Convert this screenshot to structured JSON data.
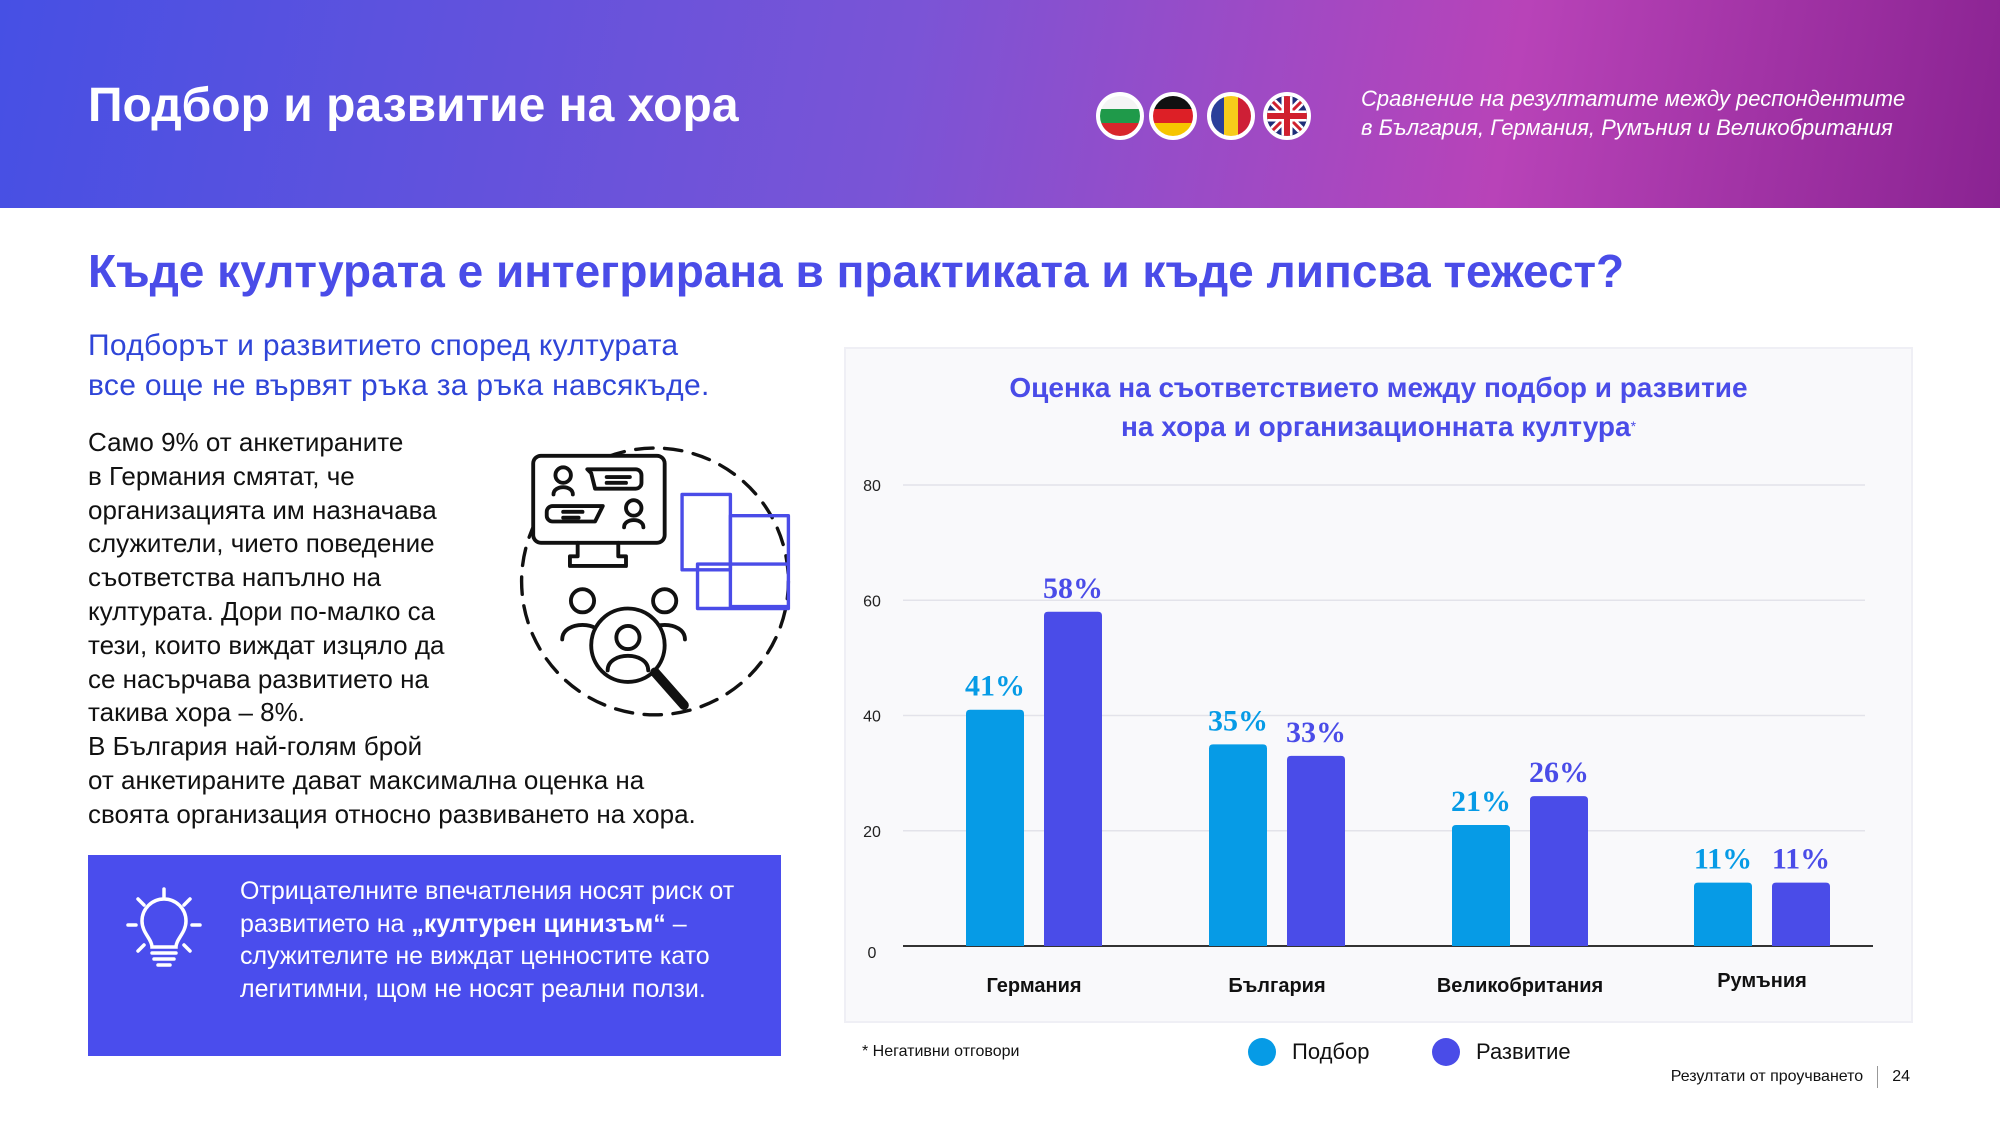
{
  "header": {
    "title": "Подбор и развитие на хора",
    "flags": [
      "bulgaria-flag",
      "germany-flag",
      "romania-flag",
      "uk-flag"
    ],
    "subtitle_lines": [
      "Сравнение на резултатите между респондентите",
      "в България, Германия, Румъния и Великобритания"
    ]
  },
  "main": {
    "heading": "Къде културата е интегрирана в практиката и къде липсва тежест?",
    "lead_lines": [
      "Подборът и развитието според културата",
      "все още не вървят ръка за ръка навсякъде."
    ],
    "body_lines_narrow": [
      "Само 9% от анкетираните",
      "в Германия смятат, че",
      "организацията им назначава",
      "служители, чието поведение",
      "съответства напълно на",
      "културата. Дори по-малко са",
      "тези, които виждат изцяло да",
      "се насърчава развитието на",
      "такива хора – 8%.",
      "В България най-голям брой"
    ],
    "body_lines_wide": [
      "от анкетираните дават максимална оценка на",
      "своята организация относно развиването на хора."
    ],
    "callout": {
      "icon": "lightbulb-icon",
      "text_before": "Отрицателните впечатления носят риск от развитието на ",
      "text_bold": "„културен цинизъм“",
      "text_after": " – служителите не виждат ценностите като легитимни, щом не носят реални ползи."
    }
  },
  "chart_data": {
    "type": "bar",
    "title_line1": "Оценка на съответствието между подбор и развитие",
    "title_line2": "на хора и организационната култура",
    "title_mark": "*",
    "categories": [
      "Германия",
      "България",
      "Великобритания",
      "Румъния"
    ],
    "series": [
      {
        "name": "Подбор",
        "color": "#069be6",
        "values": [
          41,
          35,
          21,
          11
        ],
        "labels": [
          "41%",
          "35%",
          "21%",
          "11%"
        ]
      },
      {
        "name": "Развитие",
        "color": "#4a4ce8",
        "values": [
          58,
          33,
          26,
          11
        ],
        "labels": [
          "58%",
          "33%",
          "26%",
          "11%"
        ]
      }
    ],
    "yticks": [
      "0",
      "20",
      "40",
      "60",
      "80"
    ],
    "ylim": [
      0,
      80
    ],
    "grid": true,
    "legend_position": "bottom",
    "note": "* Негативни отговори"
  },
  "footer": {
    "label": "Резултати от проучването",
    "page": "24"
  }
}
